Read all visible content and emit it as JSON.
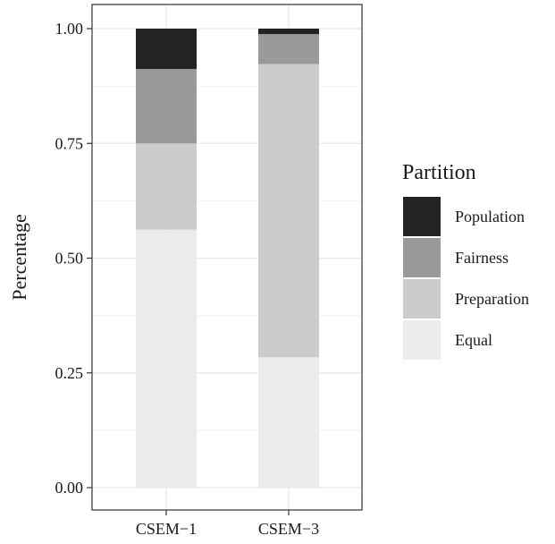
{
  "chart_data": {
    "type": "bar",
    "stacked": true,
    "categories": [
      "CSEM−1",
      "CSEM−3"
    ],
    "series": [
      {
        "name": "Equal",
        "color": "#ebebeb",
        "values": [
          0.562,
          0.284
        ]
      },
      {
        "name": "Preparation",
        "color": "#cccccc",
        "values": [
          0.188,
          0.639
        ]
      },
      {
        "name": "Fairness",
        "color": "#9a9a9b",
        "values": [
          0.162,
          0.065
        ]
      },
      {
        "name": "Population",
        "color": "#232323",
        "values": [
          0.088,
          0.012
        ]
      }
    ],
    "ylabel": "Percentage",
    "xlabel": "",
    "ylim": [
      0,
      1
    ],
    "yticks": [
      0,
      0.25,
      0.5,
      0.75,
      1
    ],
    "ytick_labels": [
      "0.00",
      "0.25",
      "0.50",
      "0.75",
      "1.00"
    ],
    "grid": true,
    "legend": {
      "title": "Partition",
      "placement": "right",
      "order": [
        "Population",
        "Fairness",
        "Preparation",
        "Equal"
      ]
    }
  }
}
